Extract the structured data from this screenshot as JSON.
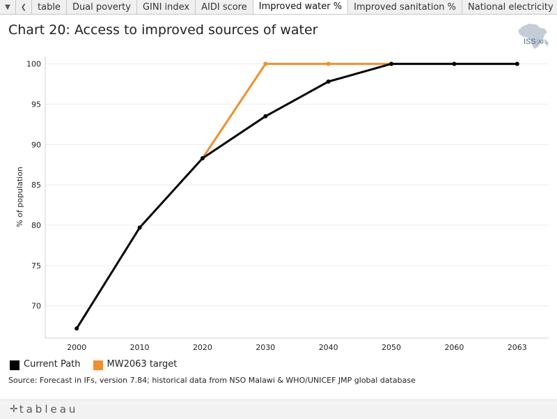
{
  "tabs": [
    {
      "label": "table"
    },
    {
      "label": "Dual poverty"
    },
    {
      "label": "GINI index"
    },
    {
      "label": "AIDI score"
    },
    {
      "label": "Improved water %"
    },
    {
      "label": "Improved sanitation %"
    },
    {
      "label": "National electricity rat"
    }
  ],
  "active_tab": "Improved water %",
  "logo": {
    "text": "ISS",
    "suffix": "AFI",
    "icon": "africa-map-icon"
  },
  "source": "Source: Forecast in IFs, version 7.84; historical data from NSO Malawi & WHO/UNICEF JMP global database",
  "footer": {
    "brand": "tableau",
    "icon": "tableau-plus-icon"
  },
  "colors": {
    "current_path": "#000000",
    "target": "#f28e2b",
    "grid": "#ececec"
  },
  "chart_data": {
    "type": "line",
    "title": "Chart 20: Access to improved sources of water",
    "xlabel": "",
    "ylabel": "% of population",
    "x": [
      "2000",
      "2010",
      "2020",
      "2030",
      "2040",
      "2050",
      "2060",
      "2063"
    ],
    "ylim": [
      66,
      101
    ],
    "yticks": [
      70,
      75,
      80,
      85,
      90,
      95,
      100
    ],
    "grid": true,
    "legend_position": "bottom-left",
    "series": [
      {
        "name": "Current Path",
        "color": "#000000",
        "values": [
          67.2,
          79.7,
          88.3,
          93.5,
          97.8,
          100,
          100,
          100
        ]
      },
      {
        "name": "MW2063 target",
        "color": "#f28e2b",
        "values": [
          null,
          null,
          88.3,
          100,
          100,
          100,
          100,
          100
        ]
      }
    ]
  }
}
